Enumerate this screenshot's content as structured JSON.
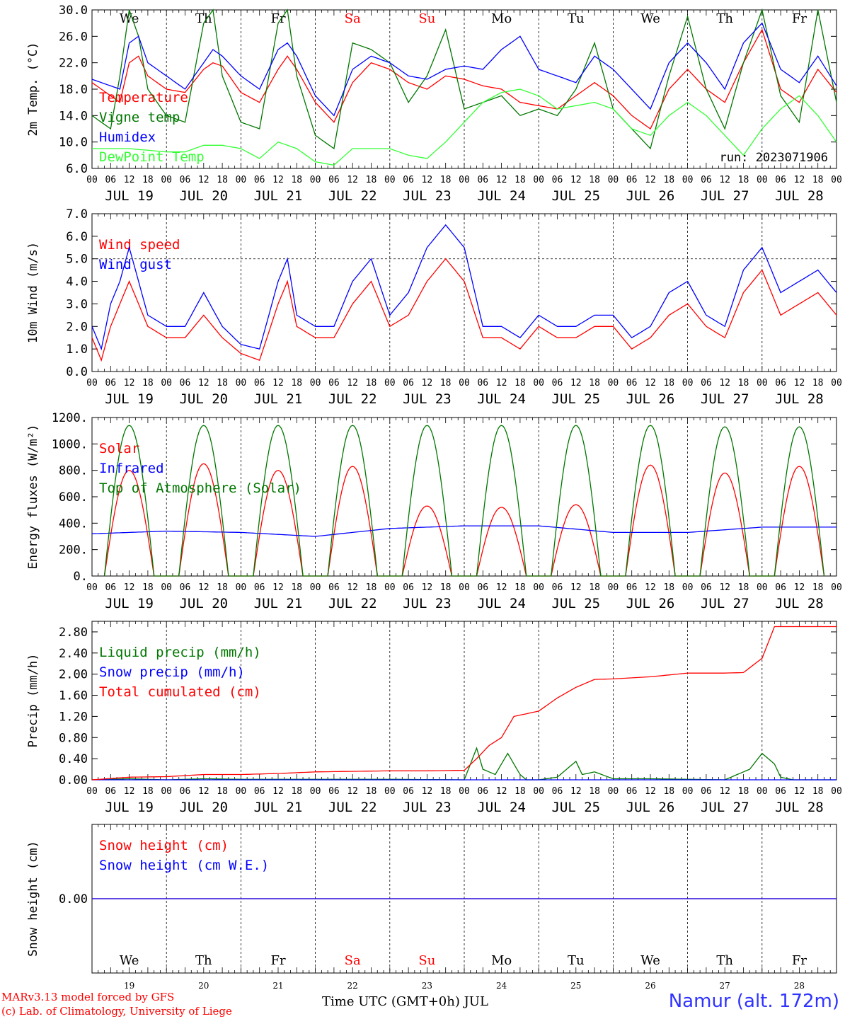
{
  "run_label": "run: 2023071906",
  "weekdays": [
    "We",
    "Th",
    "Fr",
    "Sa",
    "Su",
    "Mo",
    "Tu",
    "We",
    "Th",
    "Fr"
  ],
  "weekday_colors": [
    "#000000",
    "#000000",
    "#000000",
    "#ff0000",
    "#ff0000",
    "#000000",
    "#000000",
    "#000000",
    "#000000",
    "#000000"
  ],
  "date_labels": [
    "JUL 19",
    "JUL 20",
    "JUL 21",
    "JUL 22",
    "JUL 23",
    "JUL 24",
    "JUL 25",
    "JUL 26",
    "JUL 27",
    "JUL 28"
  ],
  "day_numbers": [
    "19",
    "20",
    "21",
    "22",
    "23",
    "24",
    "25",
    "26",
    "27",
    "28"
  ],
  "hour_ticks": [
    "00",
    "06",
    "12",
    "18"
  ],
  "footer": {
    "credit_line1": "MARv3.13 model forced by GFS",
    "credit_line2": "(c) Lab. of Climatology, University of Liege",
    "x_axis_label": "Time UTC (GMT+0h) JUL",
    "station": "Namur (alt. 172m)"
  },
  "chart_data": [
    {
      "type": "line",
      "ylabel": "2m Temp. (°C)",
      "ylim": [
        6.0,
        30.0
      ],
      "yticks": [
        "6.0",
        "10.0",
        "14.0",
        "18.0",
        "22.0",
        "26.0",
        "30.0"
      ],
      "grid": "vertical day lines",
      "legend_placement": "left",
      "series": [
        {
          "name": "Temperature",
          "color": "#ff0000",
          "x": [
            0,
            9,
            12,
            15,
            18,
            24,
            30,
            36,
            39,
            42,
            48,
            54,
            60,
            63,
            66,
            72,
            78,
            84,
            90,
            96,
            102,
            108,
            114,
            120,
            126,
            132,
            138,
            144,
            150,
            156,
            162,
            168,
            174,
            180,
            186,
            192,
            198,
            204,
            210,
            216,
            222,
            228,
            234,
            240
          ],
          "y": [
            19,
            16,
            22,
            23,
            20,
            18,
            17.5,
            21,
            22,
            21.5,
            17.5,
            16,
            21,
            23,
            21,
            16,
            13,
            19,
            22,
            21,
            19,
            18,
            20,
            19.5,
            18.5,
            18,
            16,
            15.5,
            15,
            17,
            19,
            17,
            14,
            12,
            18,
            21,
            18,
            16,
            22,
            27,
            18,
            16,
            21,
            17.5
          ]
        },
        {
          "name": "Vigne temp",
          "color": "#007700",
          "x": [
            0,
            6,
            9,
            12,
            15,
            18,
            24,
            30,
            36,
            39,
            42,
            48,
            54,
            60,
            63,
            66,
            72,
            78,
            84,
            90,
            96,
            102,
            108,
            114,
            120,
            126,
            132,
            138,
            144,
            150,
            156,
            162,
            168,
            174,
            180,
            186,
            192,
            198,
            204,
            210,
            216,
            222,
            228,
            234,
            240
          ],
          "y": [
            14,
            12,
            20,
            30,
            26,
            18,
            14,
            13,
            28,
            30,
            20,
            13,
            12,
            28,
            30,
            20,
            11,
            9,
            25,
            24,
            22,
            16,
            20,
            27,
            15,
            16,
            17,
            14,
            15,
            14,
            18,
            25,
            15,
            12,
            9,
            20,
            29,
            18,
            12,
            22,
            30,
            17,
            13,
            30,
            16
          ]
        },
        {
          "name": "Humidex",
          "color": "#0000ff",
          "x": [
            0,
            9,
            12,
            15,
            18,
            24,
            30,
            36,
            39,
            42,
            48,
            54,
            60,
            63,
            66,
            72,
            78,
            84,
            90,
            96,
            102,
            108,
            114,
            120,
            126,
            132,
            138,
            144,
            150,
            156,
            162,
            168,
            174,
            180,
            186,
            192,
            198,
            204,
            210,
            216,
            222,
            228,
            234,
            240
          ],
          "y": [
            19.5,
            18,
            25,
            26,
            22,
            20,
            18,
            22,
            24,
            23,
            20,
            18,
            24,
            25,
            23,
            17,
            14,
            21,
            23,
            22,
            20,
            19.5,
            21,
            21.5,
            21,
            24,
            26,
            21,
            20,
            19,
            23,
            21,
            18,
            15,
            22,
            25,
            22,
            18,
            25,
            28,
            21,
            19,
            23,
            18.5
          ]
        },
        {
          "name": "DewPoint Temp",
          "color": "#33ff33",
          "x": [
            0,
            12,
            24,
            30,
            36,
            42,
            48,
            54,
            60,
            66,
            72,
            78,
            84,
            90,
            96,
            102,
            108,
            114,
            120,
            126,
            132,
            138,
            144,
            150,
            156,
            162,
            168,
            174,
            180,
            186,
            192,
            198,
            204,
            210,
            216,
            222,
            228,
            234,
            240
          ],
          "y": [
            9,
            9,
            8.5,
            8.5,
            9.5,
            9.5,
            9,
            7.5,
            10,
            9,
            7,
            6.5,
            9,
            9,
            9,
            8,
            7.5,
            10,
            13,
            16,
            17.5,
            18,
            17,
            15,
            15.5,
            16,
            15,
            12,
            11,
            14,
            16,
            14,
            11,
            8,
            12,
            15,
            17,
            14,
            10
          ]
        }
      ]
    },
    {
      "type": "line",
      "ylabel": "10m Wind (m/s)",
      "ylim": [
        0.0,
        7.0
      ],
      "yticks": [
        "0.0",
        "1.0",
        "2.0",
        "3.0",
        "4.0",
        "5.0",
        "6.0",
        "7.0"
      ],
      "reference_line": 5.0,
      "legend_placement": "left",
      "series": [
        {
          "name": "Wind speed",
          "color": "#ff0000",
          "x": [
            0,
            3,
            6,
            9,
            12,
            15,
            18,
            24,
            30,
            36,
            42,
            48,
            54,
            60,
            63,
            66,
            72,
            78,
            84,
            90,
            96,
            102,
            108,
            114,
            120,
            126,
            132,
            138,
            144,
            150,
            156,
            162,
            168,
            174,
            180,
            186,
            192,
            198,
            204,
            210,
            216,
            222,
            228,
            234,
            240
          ],
          "y": [
            1.5,
            0.5,
            2,
            3,
            4,
            3,
            2,
            1.5,
            1.5,
            2.5,
            1.5,
            0.8,
            0.5,
            3,
            4,
            2,
            1.5,
            1.5,
            3,
            4,
            2,
            2.5,
            4,
            5,
            4,
            1.5,
            1.5,
            1,
            2,
            1.5,
            1.5,
            2,
            2,
            1,
            1.5,
            2.5,
            3,
            2,
            1.5,
            3.5,
            4.5,
            2.5,
            3,
            3.5,
            2.5
          ]
        },
        {
          "name": "Wind gust",
          "color": "#0000ff",
          "x": [
            0,
            3,
            6,
            9,
            12,
            15,
            18,
            24,
            30,
            36,
            42,
            48,
            54,
            60,
            63,
            66,
            72,
            78,
            84,
            90,
            96,
            102,
            108,
            114,
            120,
            126,
            132,
            138,
            144,
            150,
            156,
            162,
            168,
            174,
            180,
            186,
            192,
            198,
            204,
            210,
            216,
            222,
            228,
            234,
            240
          ],
          "y": [
            2,
            1,
            3,
            4,
            5.5,
            4,
            2.5,
            2,
            2,
            3.5,
            2,
            1.2,
            1,
            4,
            5,
            2.5,
            2,
            2,
            4,
            5,
            2.5,
            3.5,
            5.5,
            6.5,
            5.5,
            2,
            2,
            1.5,
            2.5,
            2,
            2,
            2.5,
            2.5,
            1.5,
            2,
            3.5,
            4,
            2.5,
            2,
            4.5,
            5.5,
            3.5,
            4,
            4.5,
            3.5
          ]
        }
      ]
    },
    {
      "type": "line",
      "ylabel": "Energy fluxes (W/m²)",
      "ylim": [
        0,
        1200
      ],
      "yticks": [
        "0.",
        "200.",
        "400.",
        "600.",
        "800.",
        "1000.",
        "1200."
      ],
      "legend_placement": "left",
      "series": [
        {
          "name": "Solar",
          "color": "#ff0000",
          "daily_peak": [
            800,
            850,
            800,
            830,
            530,
            520,
            540,
            840,
            780,
            830
          ]
        },
        {
          "name": "Infrared",
          "color": "#0000ff",
          "x": [
            0,
            24,
            48,
            72,
            96,
            120,
            144,
            168,
            192,
            216,
            240
          ],
          "y": [
            320,
            340,
            330,
            300,
            360,
            380,
            380,
            330,
            330,
            370,
            370
          ]
        },
        {
          "name": "Top of Atmosphere (Solar)",
          "color": "#007700",
          "daily_peak": [
            1140,
            1140,
            1140,
            1140,
            1140,
            1140,
            1140,
            1140,
            1130,
            1130
          ]
        }
      ]
    },
    {
      "type": "line",
      "ylabel": "Precip (mm/h)",
      "ylim": [
        0.0,
        3.0
      ],
      "yticks": [
        "0.00",
        "0.40",
        "0.80",
        "1.20",
        "1.60",
        "2.00",
        "2.40",
        "2.80"
      ],
      "legend_placement": "left",
      "series": [
        {
          "name": "Liquid precip (mm/h)",
          "color": "#007700",
          "x": [
            0,
            12,
            24,
            36,
            48,
            72,
            96,
            120,
            124,
            126,
            130,
            134,
            138,
            140,
            144,
            150,
            156,
            158,
            162,
            168,
            180,
            204,
            212,
            216,
            220,
            222,
            226,
            240
          ],
          "y": [
            0,
            0.02,
            0,
            0.02,
            0.01,
            0.01,
            0.01,
            0,
            0.6,
            0.2,
            0.1,
            0.5,
            0.1,
            0,
            0,
            0.05,
            0.35,
            0.1,
            0.15,
            0.02,
            0.02,
            0,
            0.2,
            0.5,
            0.3,
            0.05,
            0,
            0
          ]
        },
        {
          "name": "Snow precip (mm/h)",
          "color": "#0000ff",
          "x": [
            0,
            240
          ],
          "y": [
            0,
            0
          ]
        },
        {
          "name": "Total cumulated (cm)",
          "color": "#ff0000",
          "x": [
            0,
            12,
            24,
            36,
            48,
            60,
            72,
            84,
            96,
            108,
            120,
            124,
            128,
            132,
            136,
            140,
            144,
            150,
            156,
            162,
            168,
            180,
            192,
            204,
            210,
            216,
            220,
            228,
            240
          ],
          "y": [
            0,
            0.05,
            0.06,
            0.1,
            0.1,
            0.12,
            0.15,
            0.16,
            0.17,
            0.17,
            0.18,
            0.4,
            0.65,
            0.8,
            1.2,
            1.25,
            1.3,
            1.55,
            1.75,
            1.9,
            1.91,
            1.95,
            2.02,
            2.02,
            2.03,
            2.3,
            2.9,
            2.9,
            2.9
          ]
        }
      ]
    },
    {
      "type": "line",
      "ylabel": "Snow height (cm)",
      "ytick": "0.00",
      "legend_placement": "left",
      "series": [
        {
          "name": "Snow height (cm)",
          "color": "#ff0000",
          "x": [
            0,
            240
          ],
          "y": [
            0,
            0
          ]
        },
        {
          "name": "Snow height (cm W.E.)",
          "color": "#0000ff",
          "x": [
            0,
            240
          ],
          "y": [
            0,
            0
          ]
        }
      ]
    }
  ]
}
